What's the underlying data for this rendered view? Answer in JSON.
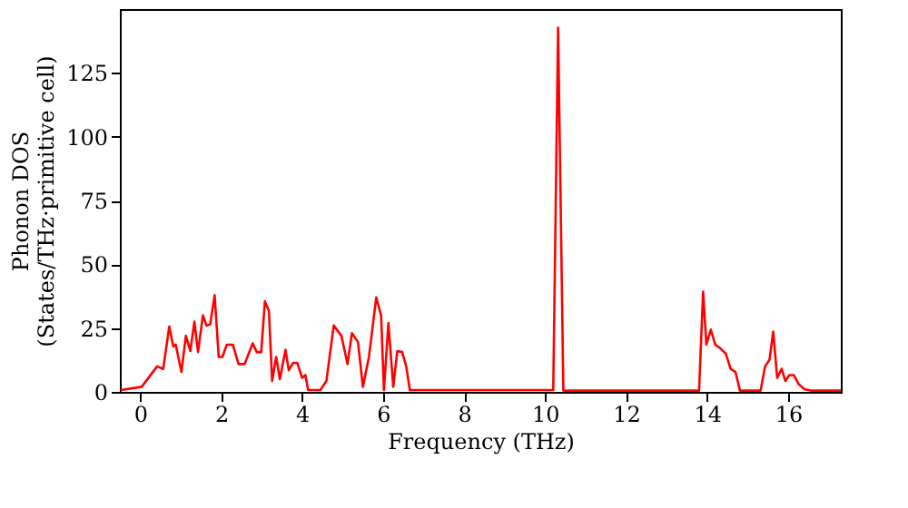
{
  "chart_data": {
    "type": "line",
    "xlabel": "Frequency (THz)",
    "ylabel": "Phonon DOS\n(States/THz·primitive cell)",
    "xlim": [
      -0.5,
      17.3
    ],
    "ylim": [
      0,
      150
    ],
    "xticks": [
      0,
      2,
      4,
      6,
      8,
      10,
      12,
      14,
      16
    ],
    "yticks": [
      0,
      25,
      50,
      75,
      100,
      125
    ],
    "grid": false,
    "series": [
      {
        "color": "#ff0000",
        "x": [
          -0.48,
          0.04,
          0.42,
          0.57,
          0.72,
          0.82,
          0.88,
          1.02,
          1.13,
          1.24,
          1.34,
          1.43,
          1.55,
          1.64,
          1.73,
          1.84,
          1.94,
          2.03,
          2.14,
          2.29,
          2.43,
          2.58,
          2.78,
          2.88,
          2.99,
          3.08,
          3.18,
          3.26,
          3.36,
          3.45,
          3.59,
          3.67,
          3.78,
          3.88,
          4.0,
          4.08,
          4.15,
          4.45,
          4.6,
          4.78,
          4.97,
          5.12,
          5.23,
          5.38,
          5.5,
          5.65,
          5.83,
          5.95,
          6.02,
          6.13,
          6.25,
          6.35,
          6.47,
          6.57,
          6.66,
          10.2,
          10.32,
          10.45,
          13.8,
          13.9,
          13.98,
          14.09,
          14.2,
          14.31,
          14.46,
          14.58,
          14.7,
          14.81,
          15.32,
          15.43,
          15.54,
          15.63,
          15.73,
          15.84,
          15.93,
          16.03,
          16.14,
          16.26,
          16.41,
          16.56,
          17.3
        ],
        "values": [
          0.7,
          2,
          10,
          9,
          25.6,
          17.8,
          18.5,
          7.8,
          22,
          16,
          27.5,
          15.6,
          30,
          26,
          26.5,
          37.9,
          13.7,
          13.7,
          18.5,
          18.5,
          10.9,
          10.9,
          19,
          15.6,
          15.6,
          35.5,
          31.7,
          4.3,
          13.7,
          5,
          16.5,
          8.5,
          11.4,
          11.4,
          5.5,
          6.6,
          0.7,
          0.7,
          4.3,
          26,
          22,
          10.9,
          23,
          19.5,
          2,
          13.7,
          37,
          30,
          0.7,
          27,
          2,
          16,
          15.6,
          10,
          0.7,
          0.7,
          142.7,
          0.5,
          0.5,
          39.3,
          18.5,
          24.4,
          18.5,
          17.3,
          15,
          9,
          7.8,
          0.5,
          0.5,
          10,
          12.6,
          23.6,
          5.5,
          9,
          4.3,
          6.6,
          6.6,
          3,
          1,
          0.5,
          0.5
        ]
      }
    ]
  }
}
